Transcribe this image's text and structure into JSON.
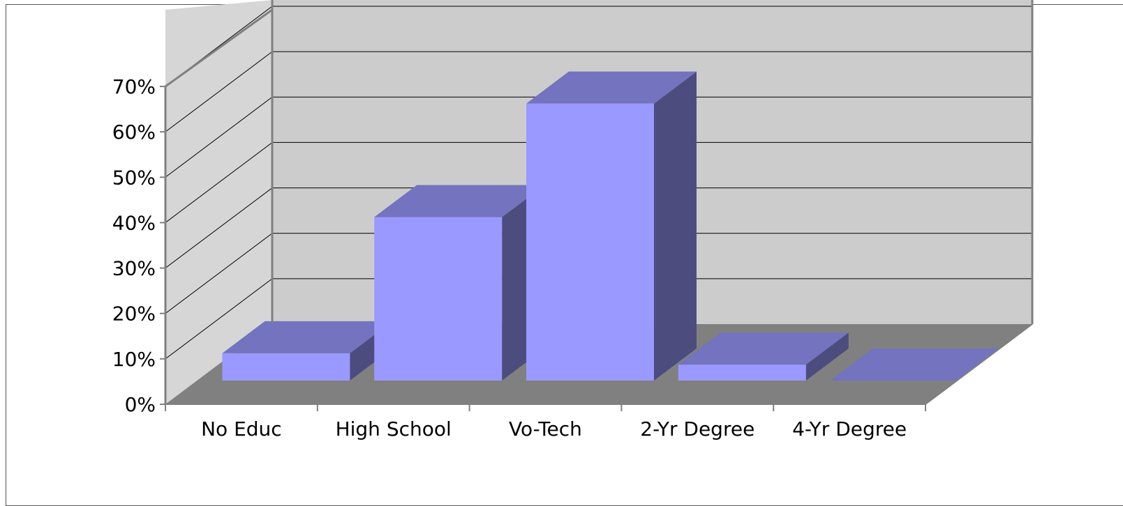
{
  "chart_data": {
    "type": "bar",
    "categories": [
      "No Educ",
      "High School",
      "Vo-Tech",
      "2-Yr Degree",
      "4-Yr Degree"
    ],
    "values": [
      0.06,
      0.36,
      0.61,
      0.035,
      0.0
    ],
    "ylim": [
      0,
      0.7
    ],
    "yticks": [
      0,
      0.1,
      0.2,
      0.3,
      0.4,
      0.5,
      0.6,
      0.7
    ],
    "ytick_labels": [
      "0%",
      "10%",
      "20%",
      "30%",
      "40%",
      "50%",
      "60%",
      "70%"
    ],
    "grid": true,
    "legend": "none",
    "style": "3d",
    "colors": {
      "bar_front": "#9999ff",
      "bar_top": "#7373bf",
      "bar_side": "#4c4c7f",
      "back_wall": "#cccccc",
      "side_wall": "#d6d6d6",
      "floor": "#808080",
      "axis": "#808080",
      "gridline": "#000000"
    }
  }
}
